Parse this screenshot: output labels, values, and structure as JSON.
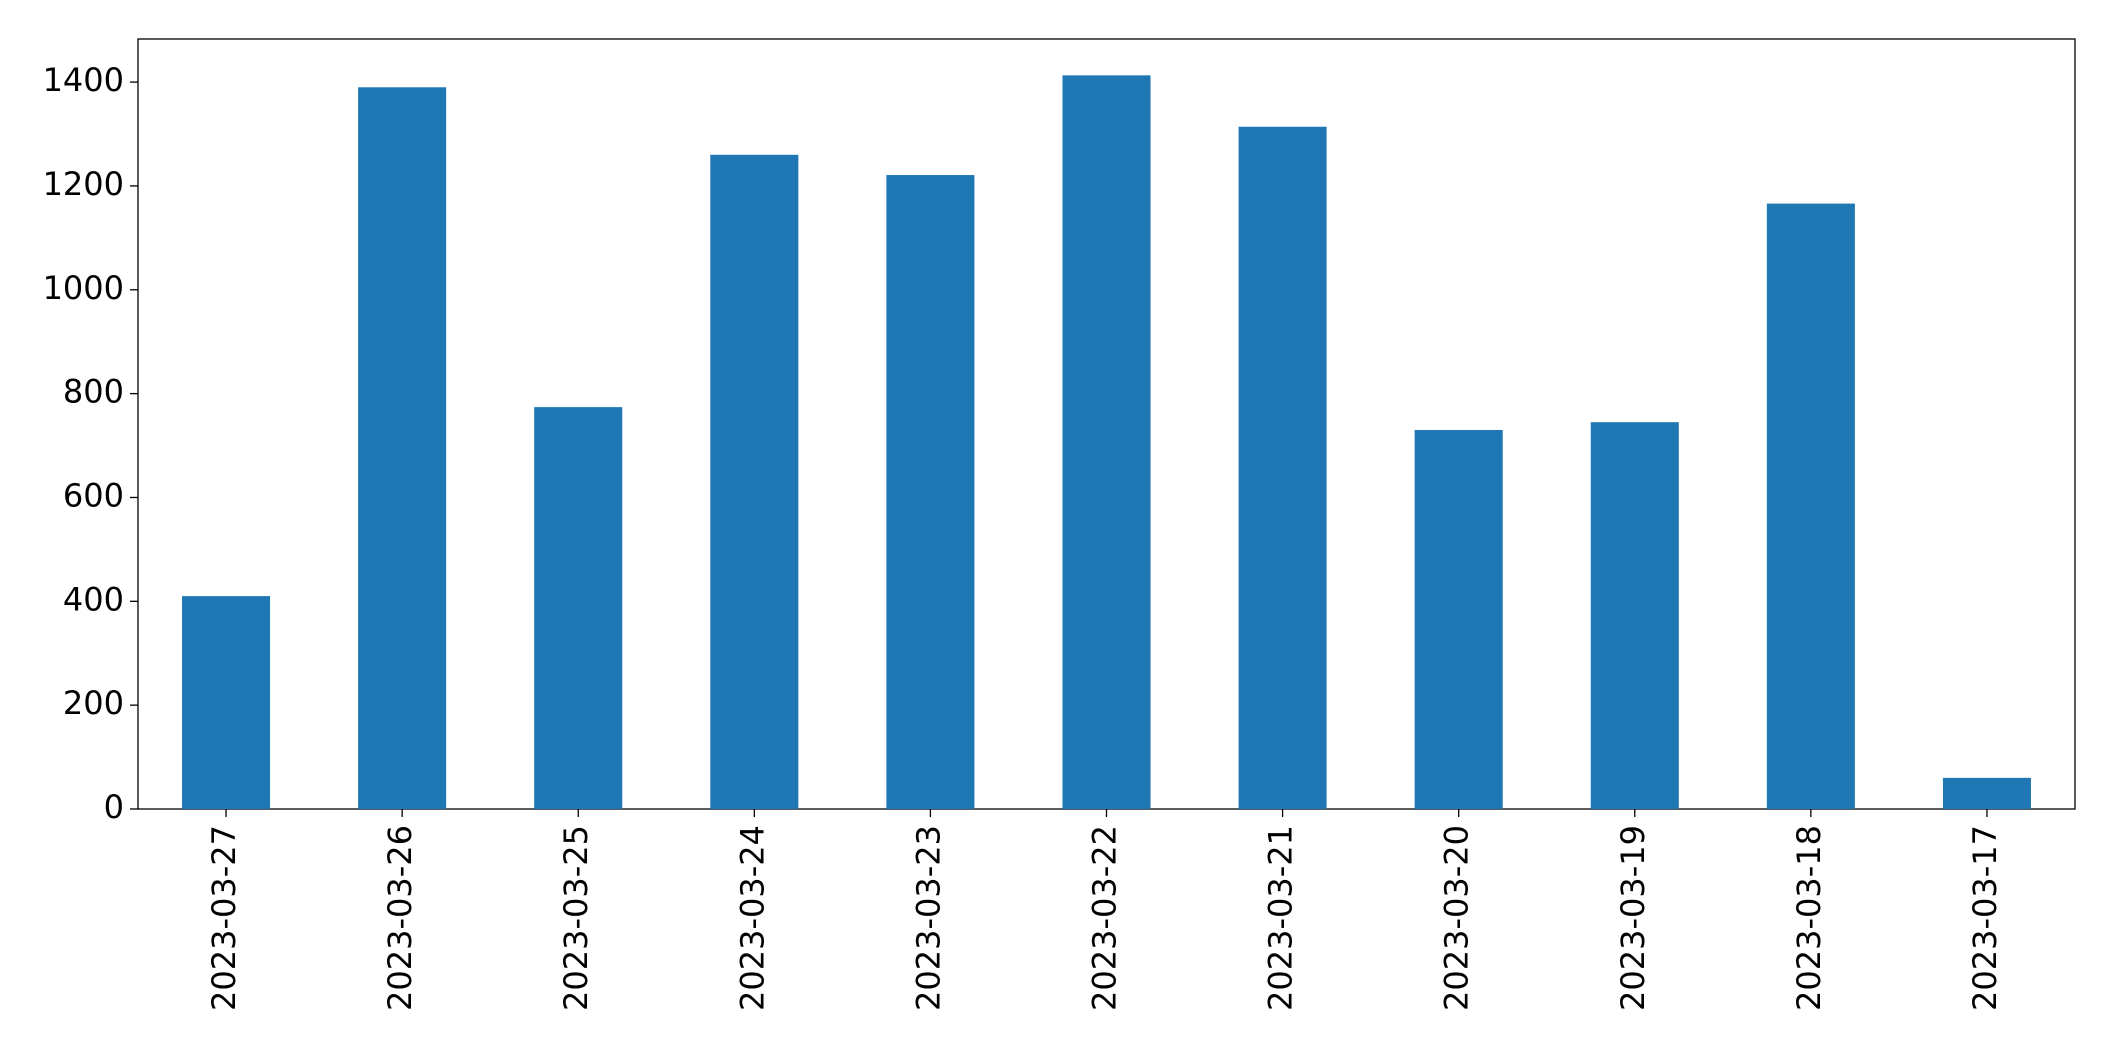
{
  "chart_data": {
    "type": "bar",
    "categories": [
      "2023-03-27",
      "2023-03-26",
      "2023-03-25",
      "2023-03-24",
      "2023-03-23",
      "2023-03-22",
      "2023-03-21",
      "2023-03-20",
      "2023-03-19",
      "2023-03-18",
      "2023-03-17"
    ],
    "values": [
      410,
      1390,
      774,
      1260,
      1221,
      1413,
      1314,
      730,
      745,
      1166,
      60
    ],
    "color": "#1f77b4",
    "ylim": [
      0,
      1483
    ],
    "yticks": [
      0,
      200,
      400,
      600,
      800,
      1000,
      1200,
      1400
    ],
    "grid": false
  }
}
